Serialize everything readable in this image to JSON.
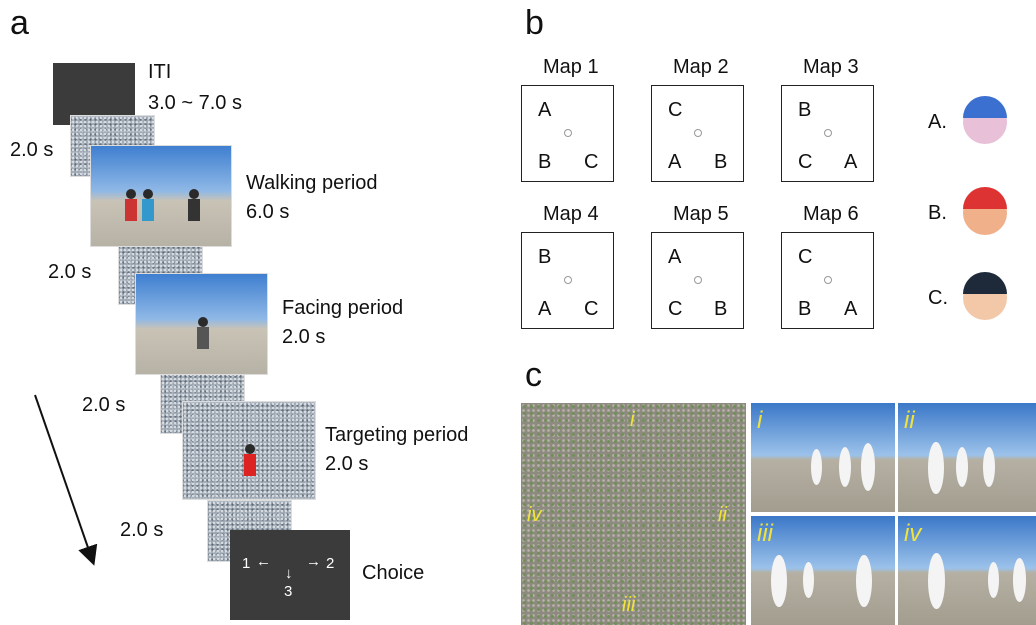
{
  "panel_a": {
    "label": "a",
    "iti": {
      "name": "ITI",
      "duration": "3.0 ~ 7.0 s"
    },
    "masks": [
      "2.0 s",
      "2.0 s",
      "2.0 s",
      "2.0 s"
    ],
    "periods": [
      {
        "name": "Walking period",
        "duration": "6.0 s"
      },
      {
        "name": "Facing period",
        "duration": "2.0 s"
      },
      {
        "name": "Targeting period",
        "duration": "2.0 s"
      }
    ],
    "choice": {
      "name": "Choice",
      "options": [
        "1",
        "2",
        "3"
      ]
    }
  },
  "panel_b": {
    "label": "b",
    "maps": [
      {
        "title": "Map 1",
        "top": "A",
        "bottom_left": "B",
        "bottom_right": "C"
      },
      {
        "title": "Map 2",
        "top": "C",
        "bottom_left": "A",
        "bottom_right": "B"
      },
      {
        "title": "Map 3",
        "top": "B",
        "bottom_left": "C",
        "bottom_right": "A"
      },
      {
        "title": "Map 4",
        "top": "B",
        "bottom_left": "A",
        "bottom_right": "C"
      },
      {
        "title": "Map 5",
        "top": "A",
        "bottom_left": "C",
        "bottom_right": "B"
      },
      {
        "title": "Map 6",
        "top": "C",
        "bottom_left": "B",
        "bottom_right": "A"
      }
    ],
    "characters": [
      "A.",
      "B.",
      "C."
    ]
  },
  "panel_c": {
    "label": "c",
    "directions": [
      "i",
      "ii",
      "iii",
      "iv"
    ],
    "views": [
      "i",
      "ii",
      "iii",
      "iv"
    ]
  }
}
